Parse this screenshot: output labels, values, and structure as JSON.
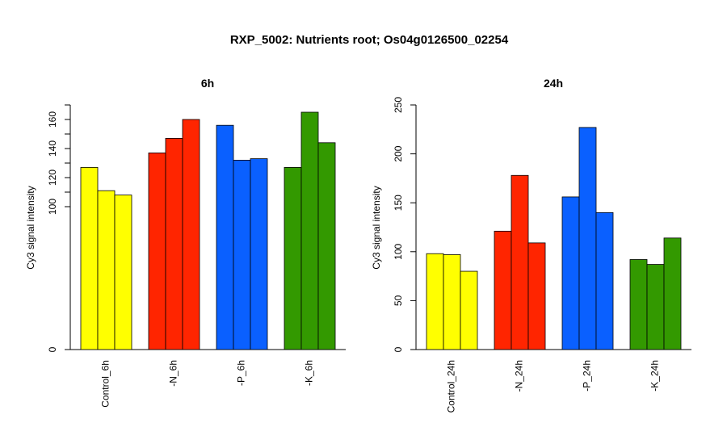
{
  "title": "RXP_5002: Nutrients root; Os04g0126500_02254",
  "colors": {
    "Control": "#ffff00",
    "-N": "#ff2500",
    "-P": "#0a60ff",
    "-K": "#339900"
  },
  "chart_data": [
    {
      "type": "bar",
      "title": "6h",
      "ylabel": "Cy3 signal intensity",
      "ylim": [
        0,
        170
      ],
      "yticks": [
        0,
        100,
        120,
        140,
        160
      ],
      "yticks_minor": [
        110,
        130,
        150,
        170
      ],
      "axis_break": true,
      "categories": [
        "Control_6h",
        "-N_6h",
        "-P_6h",
        "-K_6h"
      ],
      "groups": [
        "Control",
        "-N",
        "-P",
        "-K"
      ],
      "values": [
        [
          127,
          111,
          108
        ],
        [
          137,
          147,
          160
        ],
        [
          156,
          132,
          133
        ],
        [
          127,
          165,
          144
        ]
      ]
    },
    {
      "type": "bar",
      "title": "24h",
      "ylabel": "Cy3 signal intensity",
      "ylim": [
        0,
        250
      ],
      "yticks": [
        0,
        50,
        100,
        150,
        200,
        250
      ],
      "axis_break": false,
      "categories": [
        "Control_24h",
        "-N_24h",
        "-P_24h",
        "-K_24h"
      ],
      "groups": [
        "Control",
        "-N",
        "-P",
        "-K"
      ],
      "values": [
        [
          98,
          97,
          80
        ],
        [
          121,
          178,
          109
        ],
        [
          156,
          227,
          140
        ],
        [
          92,
          87,
          114
        ]
      ]
    }
  ]
}
